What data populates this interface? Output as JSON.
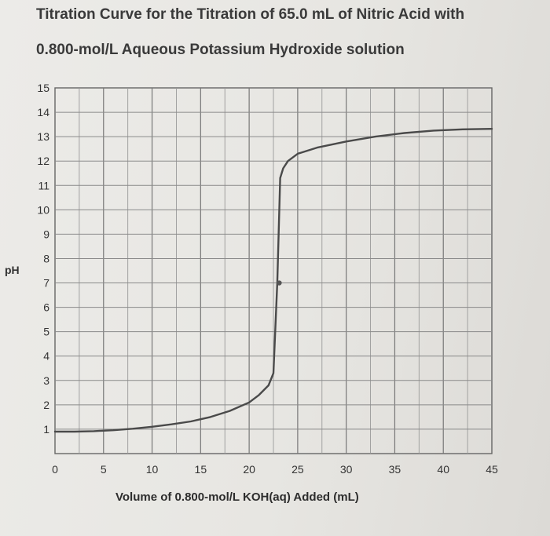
{
  "chart_data": {
    "type": "line",
    "title_line1": "Titration Curve for the Titration of 65.0 mL of Nitric Acid with",
    "title_line2": "0.800-mol/L Aqueous Potassium Hydroxide solution",
    "xlabel": "Volume of 0.800-mol/L KOH(aq) Added (mL)",
    "ylabel": "pH",
    "xlim": [
      0,
      45
    ],
    "ylim": [
      0,
      15
    ],
    "x_ticks": [
      "0",
      "5",
      "10",
      "15",
      "20",
      "25",
      "30",
      "35",
      "40",
      "45"
    ],
    "y_ticks": [
      "1",
      "2",
      "3",
      "4",
      "5",
      "6",
      "7",
      "8",
      "9",
      "10",
      "11",
      "12",
      "13",
      "14",
      "15"
    ],
    "grid": true,
    "series": [
      {
        "x": [
          0,
          2,
          4,
          6,
          8,
          10,
          12,
          14,
          16,
          18,
          20,
          21,
          22,
          22.5,
          22.9,
          23.2,
          23.5,
          24,
          25,
          27,
          30,
          33,
          36,
          39,
          42,
          45
        ],
        "y": [
          0.9,
          0.9,
          0.92,
          0.96,
          1.02,
          1.1,
          1.2,
          1.32,
          1.5,
          1.75,
          2.1,
          2.4,
          2.8,
          3.3,
          7.0,
          11.3,
          11.7,
          12.0,
          12.3,
          12.55,
          12.8,
          13.0,
          13.15,
          13.25,
          13.3,
          13.32
        ]
      }
    ],
    "equivalence_point": {
      "x": 23.1,
      "y": 7
    }
  }
}
